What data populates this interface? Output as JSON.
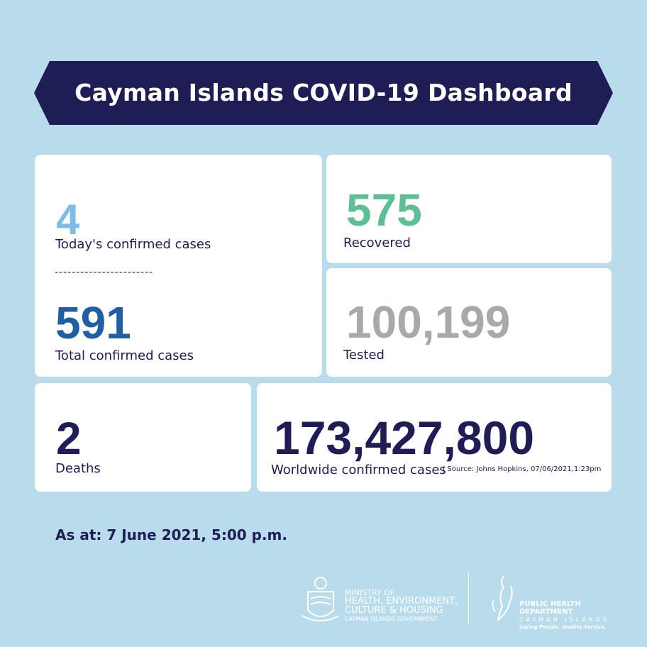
{
  "header": {
    "title": "Cayman Islands COVID-19 Dashboard"
  },
  "stats": {
    "today": {
      "value": "4",
      "label": "Today's confirmed cases",
      "color": "#7bbde6"
    },
    "divider": "-----------------------",
    "total": {
      "value": "591",
      "label": "Total confirmed cases",
      "color": "#1f5fa3"
    },
    "recovered": {
      "value": "575",
      "label": "Recovered",
      "color": "#5dbf93"
    },
    "tested": {
      "value": "100,199",
      "label": "Tested",
      "color": "#a9a9a9"
    },
    "deaths": {
      "value": "2",
      "label": "Deaths",
      "color": "#1e1d55"
    },
    "worldwide": {
      "value": "173,427,800",
      "label": "Worldwide confirmed cases",
      "source": "| Source: Johns Hopkins, 07/06/2021,1:23pm",
      "color": "#1e1d55"
    }
  },
  "as_at": "As at: 7 June 2021, 5:00 p.m.",
  "footer": {
    "ministry": {
      "line1": "MINISTRY OF",
      "line2": "HEALTH, ENVIRONMENT,",
      "line3": "CULTURE & HOUSING",
      "line4": "CAYMAN ISLANDS GOVERNMENT"
    },
    "phd": {
      "line1": "PUBLIC HEALTH DEPARTMENT",
      "line2": "CAYMAN ISLANDS",
      "line3": "Caring People. Quality Service."
    }
  },
  "colors": {
    "background": "#b9dcec",
    "banner": "#1e1d55"
  }
}
